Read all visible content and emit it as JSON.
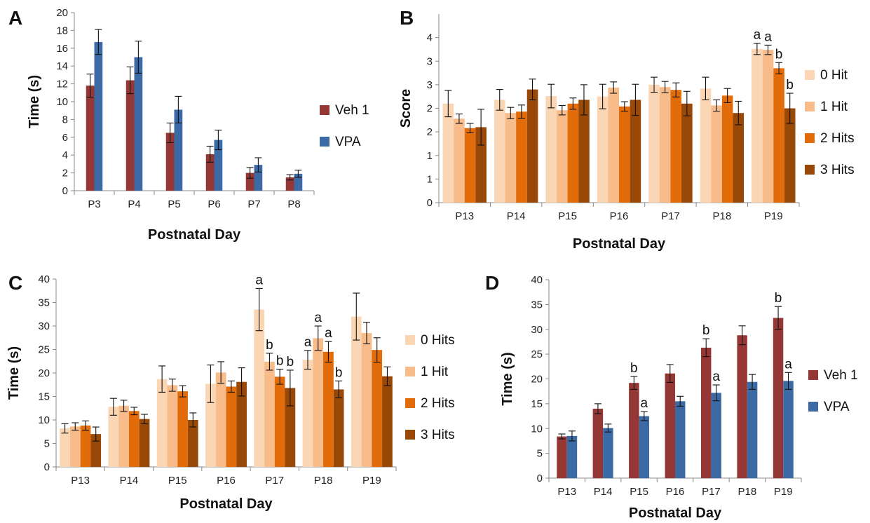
{
  "chart_data": [
    {
      "panel": "A",
      "type": "bar",
      "xlabel": "Postnatal Day",
      "ylabel": "Time (s)",
      "ylim": [
        0,
        20
      ],
      "yticks": [
        0,
        2,
        4,
        6,
        8,
        10,
        12,
        14,
        16,
        18,
        20
      ],
      "categories": [
        "P3",
        "P4",
        "P5",
        "P6",
        "P7",
        "P8"
      ],
      "legend_position": "right",
      "series": [
        {
          "name": "Veh 1",
          "color": "#953735",
          "values": [
            11.8,
            12.4,
            6.5,
            4.1,
            2.0,
            1.5
          ],
          "errors": [
            1.3,
            1.5,
            1.1,
            0.9,
            0.6,
            0.3
          ]
        },
        {
          "name": "VPA",
          "color": "#3c6aa5",
          "values": [
            16.7,
            15.0,
            9.1,
            5.7,
            2.9,
            1.9
          ],
          "errors": [
            1.4,
            1.8,
            1.5,
            1.1,
            0.8,
            0.4
          ]
        }
      ],
      "annotations": []
    },
    {
      "panel": "B",
      "type": "bar",
      "xlabel": "Postnatal Day",
      "ylabel": "Score",
      "ylim": [
        0,
        4
      ],
      "yticks": [
        "0",
        "1",
        "1",
        "2",
        "2",
        "3",
        "3",
        "4"
      ],
      "ytick_values": [
        0,
        0.5,
        1,
        1.5,
        2,
        2.5,
        3,
        3.5
      ],
      "categories": [
        "P13",
        "P14",
        "P15",
        "P16",
        "P17",
        "P18",
        "P19"
      ],
      "legend_position": "right",
      "series": [
        {
          "name": "0 Hit",
          "color": "#fad6b4",
          "values": [
            2.1,
            2.18,
            2.26,
            2.25,
            2.5,
            2.42,
            3.26
          ],
          "errors": [
            0.28,
            0.22,
            0.25,
            0.26,
            0.16,
            0.24,
            0.12
          ]
        },
        {
          "name": "1 Hit",
          "color": "#f8bb8a",
          "values": [
            1.78,
            1.9,
            1.96,
            2.44,
            2.45,
            2.06,
            3.24
          ],
          "errors": [
            0.1,
            0.12,
            0.1,
            0.12,
            0.12,
            0.12,
            0.1
          ]
        },
        {
          "name": "2 Hits",
          "color": "#e36c0a",
          "values": [
            1.58,
            1.93,
            2.1,
            2.04,
            2.39,
            2.27,
            2.85
          ],
          "errors": [
            0.1,
            0.14,
            0.12,
            0.1,
            0.15,
            0.15,
            0.12
          ]
        },
        {
          "name": "3 Hits",
          "color": "#984807",
          "values": [
            1.6,
            2.4,
            2.18,
            2.18,
            2.1,
            1.9,
            2.0
          ],
          "errors": [
            0.38,
            0.22,
            0.32,
            0.33,
            0.26,
            0.25,
            0.32
          ]
        }
      ],
      "annotations": [
        {
          "category": "P19",
          "series": "0 Hit",
          "text": "a"
        },
        {
          "category": "P19",
          "series": "1 Hit",
          "text": "a"
        },
        {
          "category": "P19",
          "series": "2 Hits",
          "text": "b"
        },
        {
          "category": "P19",
          "series": "3 Hits",
          "text": "b"
        }
      ]
    },
    {
      "panel": "C",
      "type": "bar",
      "xlabel": "Postnatal Day",
      "ylabel": "Time (s)",
      "ylim": [
        0,
        40
      ],
      "yticks": [
        0,
        5,
        10,
        15,
        20,
        25,
        30,
        35,
        40
      ],
      "categories": [
        "P13",
        "P14",
        "P15",
        "P16",
        "P17",
        "P18",
        "P19"
      ],
      "legend_position": "right",
      "series": [
        {
          "name": "0 Hits",
          "color": "#fad6b4",
          "values": [
            8.2,
            12.8,
            18.7,
            17.7,
            33.5,
            22.8,
            32.0
          ],
          "errors": [
            1.0,
            1.8,
            2.8,
            4.0,
            4.5,
            2.0,
            5.0
          ]
        },
        {
          "name": "1 Hit",
          "color": "#f8bb8a",
          "values": [
            8.6,
            13.0,
            17.4,
            20.1,
            22.4,
            27.4,
            28.5
          ],
          "errors": [
            0.8,
            1.2,
            1.3,
            2.3,
            1.8,
            2.6,
            2.3
          ]
        },
        {
          "name": "2 Hits",
          "color": "#e36c0a",
          "values": [
            8.8,
            11.9,
            16.1,
            17.1,
            19.2,
            24.5,
            24.9
          ],
          "errors": [
            1.0,
            0.8,
            1.2,
            1.2,
            1.6,
            2.2,
            2.6
          ]
        },
        {
          "name": "3 Hits",
          "color": "#984807",
          "values": [
            7.0,
            10.2,
            10.0,
            18.1,
            16.8,
            16.5,
            19.3
          ],
          "errors": [
            1.5,
            1.0,
            1.5,
            3.0,
            3.8,
            1.8,
            2.0
          ]
        }
      ],
      "annotations": [
        {
          "category": "P17",
          "series": "0 Hits",
          "text": "a"
        },
        {
          "category": "P17",
          "series": "1 Hit",
          "text": "b"
        },
        {
          "category": "P17",
          "series": "2 Hits",
          "text": "b"
        },
        {
          "category": "P17",
          "series": "3 Hits",
          "text": "b"
        },
        {
          "category": "P18",
          "series": "0 Hits",
          "text": "a"
        },
        {
          "category": "P18",
          "series": "1 Hit",
          "text": "a"
        },
        {
          "category": "P18",
          "series": "2 Hits",
          "text": "a"
        },
        {
          "category": "P18",
          "series": "3 Hits",
          "text": "b"
        }
      ]
    },
    {
      "panel": "D",
      "type": "bar",
      "xlabel": "Postnatal Day",
      "ylabel": "Time (s)",
      "ylim": [
        0,
        40
      ],
      "yticks": [
        0,
        5,
        10,
        15,
        20,
        25,
        30,
        35,
        40
      ],
      "categories": [
        "P13",
        "P14",
        "P15",
        "P16",
        "P17",
        "P18",
        "P19"
      ],
      "legend_position": "right",
      "series": [
        {
          "name": "Veh 1",
          "color": "#953735",
          "values": [
            8.4,
            14.0,
            19.2,
            21.1,
            26.3,
            28.8,
            32.3
          ],
          "errors": [
            0.5,
            1.0,
            1.3,
            1.8,
            1.8,
            1.9,
            2.3
          ]
        },
        {
          "name": "VPA",
          "color": "#3c6aa5",
          "values": [
            8.5,
            10.1,
            12.5,
            15.5,
            17.2,
            19.4,
            19.6
          ],
          "errors": [
            1.0,
            0.8,
            0.9,
            1.0,
            1.6,
            1.5,
            1.7
          ]
        }
      ],
      "annotations": [
        {
          "category": "P15",
          "series": "Veh 1",
          "text": "b"
        },
        {
          "category": "P15",
          "series": "VPA",
          "text": "a"
        },
        {
          "category": "P17",
          "series": "Veh 1",
          "text": "b"
        },
        {
          "category": "P17",
          "series": "VPA",
          "text": "a"
        },
        {
          "category": "P19",
          "series": "Veh 1",
          "text": "b"
        },
        {
          "category": "P19",
          "series": "VPA",
          "text": "a"
        }
      ]
    }
  ]
}
